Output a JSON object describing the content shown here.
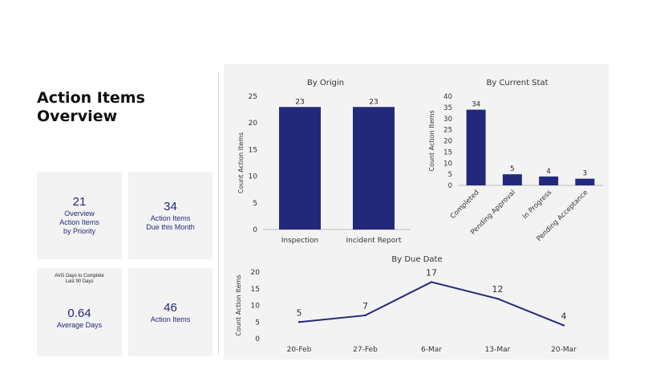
{
  "page": {
    "title_line1": "Action Items",
    "title_line2": "Overview"
  },
  "cards": {
    "priority": {
      "value": "21",
      "label_lines": [
        "Overview",
        "Action Items",
        "by Priority"
      ]
    },
    "due_month": {
      "value": "34",
      "label_lines": [
        "Action Items",
        "Due this Month"
      ]
    },
    "avg_days": {
      "caption_lines": [
        "AVG Days to Complete",
        "Last 90 Days"
      ],
      "value": "0.64",
      "label": "Average Days"
    },
    "total": {
      "value": "46",
      "label": "Action Items"
    }
  },
  "colors": {
    "accent": "#23297a",
    "panel_bg": "#f3f3f4",
    "axis": "#555555",
    "grid": "#e4e4e6"
  },
  "chart_data": [
    {
      "type": "bar",
      "title": "By Origin",
      "ylabel": "Count Action Items",
      "xlabel": "",
      "categories": [
        "Inspection",
        "Incident Report"
      ],
      "values": [
        23,
        23
      ],
      "data_labels": [
        "23",
        "23"
      ],
      "ylim": [
        0,
        25
      ],
      "yticks": [
        0,
        5,
        10,
        15,
        20,
        25
      ],
      "grid": false
    },
    {
      "type": "bar",
      "title": "By Current Stat",
      "ylabel": "Count Action Items",
      "xlabel": "",
      "categories": [
        "Completed",
        "Pending Approval",
        "In Progress",
        "Pending Acceptance"
      ],
      "values": [
        34,
        5,
        4,
        3
      ],
      "data_labels": [
        "34",
        "5",
        "4",
        "3"
      ],
      "ylim": [
        0,
        40
      ],
      "yticks": [
        0,
        5,
        10,
        15,
        20,
        25,
        30,
        35,
        40
      ],
      "grid": false
    },
    {
      "type": "line",
      "title": "By Due Date",
      "ylabel": "Count Action Items",
      "xlabel": "",
      "x": [
        "20-Feb",
        "27-Feb",
        "6-Mar",
        "13-Mar",
        "20-Mar"
      ],
      "values": [
        5,
        7,
        17,
        12,
        4
      ],
      "data_labels": [
        "5",
        "7",
        "17",
        "12",
        "4"
      ],
      "ylim": [
        0,
        20
      ],
      "yticks": [
        0,
        5,
        10,
        15,
        20
      ],
      "grid": false
    }
  ]
}
